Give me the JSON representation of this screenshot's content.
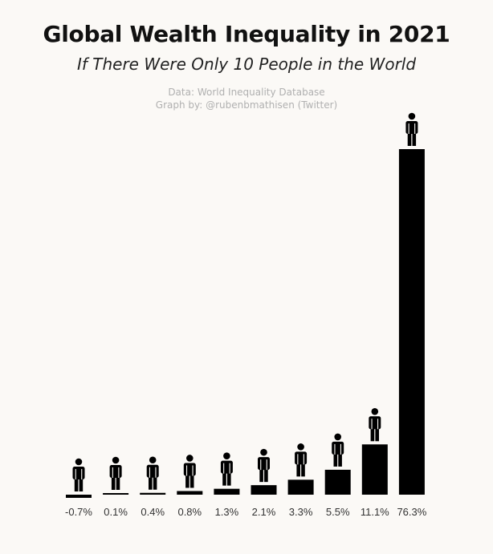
{
  "chart_data": {
    "type": "bar",
    "title": "Global Wealth Inequality in 2021",
    "subtitle": "If There Were Only 10 People in the World",
    "source_lines": [
      "Data: World Inequality Database",
      "Graph by: @rubenbmathisen (Twitter)"
    ],
    "categories": [
      "-0.7%",
      "0.1%",
      "0.4%",
      "0.8%",
      "1.3%",
      "2.1%",
      "3.3%",
      "5.5%",
      "11.1%",
      "76.3%"
    ],
    "values": [
      -0.7,
      0.1,
      0.4,
      0.8,
      1.3,
      2.1,
      3.3,
      5.5,
      11.1,
      76.3
    ],
    "unit": "%",
    "xlabel": "",
    "ylabel": "",
    "ylim": [
      0,
      76.3
    ],
    "grid": false,
    "legend": "none",
    "bar_color": "#000000",
    "marker_icon": "person-icon"
  }
}
